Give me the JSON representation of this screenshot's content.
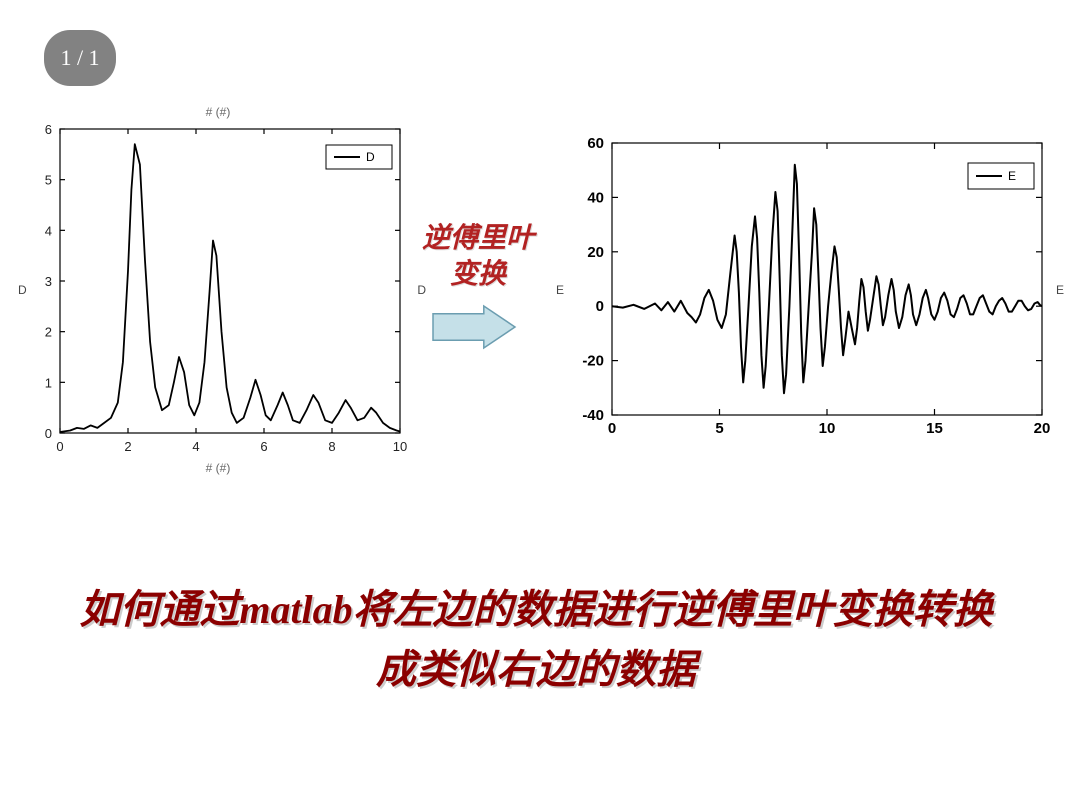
{
  "page_badge": "1 / 1",
  "middle_label_line1": "逆傅里叶",
  "middle_label_line2": "变换",
  "arrow": {
    "fill": "#c5e0e8",
    "stroke": "#6b9db0",
    "width": 90,
    "height": 48
  },
  "question_text": "如何通过matlab将左边的数据进行逆傅里叶变换转换成类似右边的数据",
  "left_chart": {
    "type": "line",
    "title_top": "# (#)",
    "title_bottom": "# (#)",
    "ylabel_left": "D",
    "ylabel_right": "D",
    "legend_label": "D",
    "xlim": [
      0,
      10
    ],
    "ylim": [
      0,
      6
    ],
    "xticks": [
      0,
      2,
      4,
      6,
      8,
      10
    ],
    "yticks": [
      0,
      1,
      2,
      3,
      4,
      5,
      6
    ],
    "line_color": "#000000",
    "axis_color": "#000000",
    "background": "#ffffff",
    "line_width": 1.8,
    "data": [
      [
        0.0,
        0.02
      ],
      [
        0.3,
        0.05
      ],
      [
        0.5,
        0.1
      ],
      [
        0.7,
        0.08
      ],
      [
        0.9,
        0.15
      ],
      [
        1.1,
        0.1
      ],
      [
        1.3,
        0.2
      ],
      [
        1.5,
        0.3
      ],
      [
        1.7,
        0.6
      ],
      [
        1.85,
        1.4
      ],
      [
        2.0,
        3.2
      ],
      [
        2.1,
        4.8
      ],
      [
        2.2,
        5.7
      ],
      [
        2.35,
        5.3
      ],
      [
        2.5,
        3.4
      ],
      [
        2.65,
        1.8
      ],
      [
        2.8,
        0.9
      ],
      [
        3.0,
        0.45
      ],
      [
        3.2,
        0.55
      ],
      [
        3.35,
        1.0
      ],
      [
        3.5,
        1.5
      ],
      [
        3.65,
        1.2
      ],
      [
        3.8,
        0.55
      ],
      [
        3.95,
        0.35
      ],
      [
        4.1,
        0.6
      ],
      [
        4.25,
        1.4
      ],
      [
        4.4,
        2.8
      ],
      [
        4.5,
        3.8
      ],
      [
        4.6,
        3.5
      ],
      [
        4.75,
        2.0
      ],
      [
        4.9,
        0.9
      ],
      [
        5.05,
        0.4
      ],
      [
        5.2,
        0.2
      ],
      [
        5.4,
        0.3
      ],
      [
        5.6,
        0.7
      ],
      [
        5.75,
        1.05
      ],
      [
        5.9,
        0.75
      ],
      [
        6.05,
        0.35
      ],
      [
        6.2,
        0.25
      ],
      [
        6.4,
        0.55
      ],
      [
        6.55,
        0.8
      ],
      [
        6.7,
        0.55
      ],
      [
        6.85,
        0.25
      ],
      [
        7.05,
        0.2
      ],
      [
        7.25,
        0.45
      ],
      [
        7.45,
        0.75
      ],
      [
        7.6,
        0.6
      ],
      [
        7.8,
        0.25
      ],
      [
        8.0,
        0.2
      ],
      [
        8.2,
        0.4
      ],
      [
        8.4,
        0.65
      ],
      [
        8.55,
        0.5
      ],
      [
        8.75,
        0.25
      ],
      [
        8.95,
        0.3
      ],
      [
        9.15,
        0.5
      ],
      [
        9.3,
        0.4
      ],
      [
        9.5,
        0.2
      ],
      [
        9.7,
        0.1
      ],
      [
        9.9,
        0.05
      ],
      [
        10.0,
        0.03
      ]
    ]
  },
  "right_chart": {
    "type": "line",
    "ylabel_left": "E",
    "ylabel_right": "E",
    "legend_label": "E",
    "xlim": [
      0,
      20
    ],
    "ylim": [
      -40,
      60
    ],
    "xticks": [
      0,
      5,
      10,
      15,
      20
    ],
    "yticks": [
      -40,
      -20,
      0,
      20,
      40,
      60
    ],
    "line_color": "#000000",
    "axis_color": "#000000",
    "background": "#ffffff",
    "line_width": 2,
    "data": [
      [
        0.0,
        0
      ],
      [
        0.5,
        -0.5
      ],
      [
        1.0,
        0.5
      ],
      [
        1.5,
        -1
      ],
      [
        2.0,
        1
      ],
      [
        2.3,
        -1.5
      ],
      [
        2.6,
        1.5
      ],
      [
        2.9,
        -2
      ],
      [
        3.2,
        2
      ],
      [
        3.5,
        -2.5
      ],
      [
        3.7,
        -4
      ],
      [
        3.9,
        -6
      ],
      [
        4.1,
        -3
      ],
      [
        4.3,
        3
      ],
      [
        4.5,
        6
      ],
      [
        4.7,
        2
      ],
      [
        4.9,
        -5
      ],
      [
        5.1,
        -8
      ],
      [
        5.3,
        -3
      ],
      [
        5.5,
        12
      ],
      [
        5.7,
        26
      ],
      [
        5.8,
        20
      ],
      [
        5.9,
        5
      ],
      [
        6.0,
        -15
      ],
      [
        6.1,
        -28
      ],
      [
        6.2,
        -20
      ],
      [
        6.35,
        0
      ],
      [
        6.5,
        22
      ],
      [
        6.65,
        33
      ],
      [
        6.75,
        25
      ],
      [
        6.85,
        5
      ],
      [
        6.95,
        -18
      ],
      [
        7.05,
        -30
      ],
      [
        7.15,
        -22
      ],
      [
        7.3,
        0
      ],
      [
        7.45,
        25
      ],
      [
        7.6,
        42
      ],
      [
        7.7,
        35
      ],
      [
        7.8,
        10
      ],
      [
        7.9,
        -18
      ],
      [
        8.0,
        -32
      ],
      [
        8.1,
        -25
      ],
      [
        8.25,
        0
      ],
      [
        8.4,
        30
      ],
      [
        8.5,
        52
      ],
      [
        8.6,
        45
      ],
      [
        8.7,
        20
      ],
      [
        8.8,
        -10
      ],
      [
        8.9,
        -28
      ],
      [
        9.0,
        -20
      ],
      [
        9.15,
        0
      ],
      [
        9.3,
        20
      ],
      [
        9.4,
        36
      ],
      [
        9.5,
        30
      ],
      [
        9.6,
        12
      ],
      [
        9.7,
        -8
      ],
      [
        9.8,
        -22
      ],
      [
        9.9,
        -15
      ],
      [
        10.05,
        0
      ],
      [
        10.2,
        12
      ],
      [
        10.35,
        22
      ],
      [
        10.45,
        18
      ],
      [
        10.55,
        6
      ],
      [
        10.65,
        -8
      ],
      [
        10.75,
        -18
      ],
      [
        10.85,
        -12
      ],
      [
        11.0,
        -2
      ],
      [
        11.15,
        -8
      ],
      [
        11.3,
        -14
      ],
      [
        11.4,
        -8
      ],
      [
        11.5,
        2
      ],
      [
        11.6,
        10
      ],
      [
        11.7,
        7
      ],
      [
        11.8,
        -2
      ],
      [
        11.9,
        -9
      ],
      [
        12.0,
        -5
      ],
      [
        12.15,
        3
      ],
      [
        12.3,
        11
      ],
      [
        12.4,
        8
      ],
      [
        12.5,
        0
      ],
      [
        12.6,
        -7
      ],
      [
        12.7,
        -4
      ],
      [
        12.85,
        4
      ],
      [
        13.0,
        10
      ],
      [
        13.1,
        6
      ],
      [
        13.2,
        -2
      ],
      [
        13.35,
        -8
      ],
      [
        13.5,
        -4
      ],
      [
        13.65,
        4
      ],
      [
        13.8,
        8
      ],
      [
        13.9,
        4
      ],
      [
        14.0,
        -3
      ],
      [
        14.15,
        -7
      ],
      [
        14.3,
        -3
      ],
      [
        14.45,
        3
      ],
      [
        14.6,
        6
      ],
      [
        14.7,
        3
      ],
      [
        14.85,
        -3
      ],
      [
        15.0,
        -5
      ],
      [
        15.15,
        -2
      ],
      [
        15.3,
        3
      ],
      [
        15.45,
        5
      ],
      [
        15.6,
        2
      ],
      [
        15.75,
        -3
      ],
      [
        15.9,
        -4
      ],
      [
        16.05,
        -1
      ],
      [
        16.2,
        3
      ],
      [
        16.35,
        4
      ],
      [
        16.5,
        1
      ],
      [
        16.65,
        -3
      ],
      [
        16.8,
        -3
      ],
      [
        16.95,
        0
      ],
      [
        17.1,
        3
      ],
      [
        17.25,
        4
      ],
      [
        17.4,
        1
      ],
      [
        17.55,
        -2
      ],
      [
        17.7,
        -3
      ],
      [
        17.85,
        0
      ],
      [
        18.0,
        2
      ],
      [
        18.15,
        3
      ],
      [
        18.3,
        1
      ],
      [
        18.45,
        -2
      ],
      [
        18.6,
        -2
      ],
      [
        18.75,
        0
      ],
      [
        18.9,
        2
      ],
      [
        19.05,
        2
      ],
      [
        19.2,
        0
      ],
      [
        19.35,
        -1.5
      ],
      [
        19.5,
        -1
      ],
      [
        19.65,
        1
      ],
      [
        19.8,
        1.5
      ],
      [
        19.9,
        0.5
      ],
      [
        20.0,
        0
      ]
    ]
  }
}
